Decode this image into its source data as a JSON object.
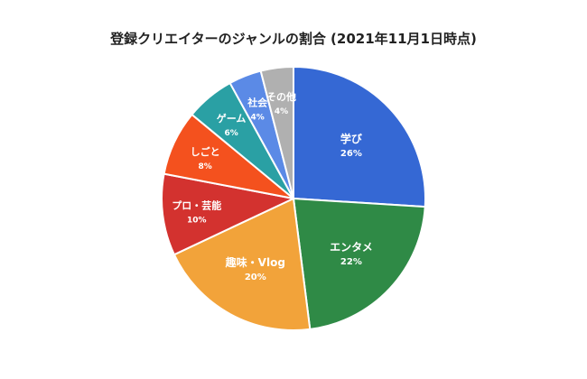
{
  "chart_data": {
    "type": "pie",
    "title": "登録クリエイターのジャンルの割合 (2021年11月1日時点)",
    "slices": [
      {
        "label": "学び",
        "value": 26,
        "value_label": "26%",
        "color": "#3568d4"
      },
      {
        "label": "エンタメ",
        "value": 22,
        "value_label": "22%",
        "color": "#2f8a46"
      },
      {
        "label": "趣味・Vlog",
        "value": 20,
        "value_label": "20%",
        "color": "#f2a33a"
      },
      {
        "label": "プロ・芸能",
        "value": 10,
        "value_label": "10%",
        "color": "#d3322f"
      },
      {
        "label": "しごと",
        "value": 8,
        "value_label": "8%",
        "color": "#f4511e"
      },
      {
        "label": "ゲーム",
        "value": 6,
        "value_label": "6%",
        "color": "#2aa0a4"
      },
      {
        "label": "社会",
        "value": 4,
        "value_label": "4%",
        "color": "#5b8ae6"
      },
      {
        "label": "その他",
        "value": 4,
        "value_label": "4%",
        "color": "#b0b0b0"
      }
    ],
    "start": "12 o'clock",
    "direction": "clockwise",
    "legend": "none",
    "labels": "inside slices"
  }
}
